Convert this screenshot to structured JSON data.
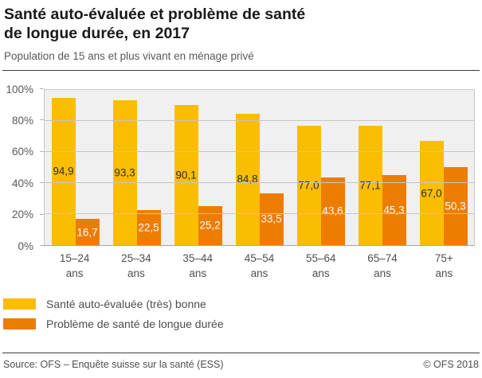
{
  "header": {
    "title_lines": [
      "Santé auto-évaluée et problème de santé",
      "de longue durée, en 2017"
    ],
    "subtitle": "Population de 15 ans et plus vivant en ménage privé"
  },
  "chart_data": {
    "type": "bar",
    "categories": [
      "15–24",
      "25–34",
      "35–44",
      "45–54",
      "55–64",
      "65–74",
      "75+"
    ],
    "category_unit": "ans",
    "series": [
      {
        "name": "Santé auto-évaluée (très) bonne",
        "color": "#fbbd00",
        "label_color": "#2e2e2e",
        "values": [
          94.9,
          93.3,
          90.1,
          84.8,
          77.0,
          77.1,
          67.0
        ]
      },
      {
        "name": "Problème de santé de longue durée",
        "color": "#ed7d00",
        "label_color": "#ffffff",
        "values": [
          16.7,
          22.5,
          25.2,
          33.5,
          43.6,
          45.3,
          50.3
        ]
      }
    ],
    "decimal_separator": ",",
    "ylim": [
      0,
      100
    ],
    "ytick_step": 20,
    "ytick_labels": [
      "0%",
      "20%",
      "40%",
      "60%",
      "80%",
      "100%"
    ],
    "grid": true,
    "plot_background": "#f0f0f0",
    "legend_position": "bottom"
  },
  "footer": {
    "source": "Source: OFS – Enquête suisse sur la santé (ESS)",
    "copyright": "© OFS 2018"
  }
}
